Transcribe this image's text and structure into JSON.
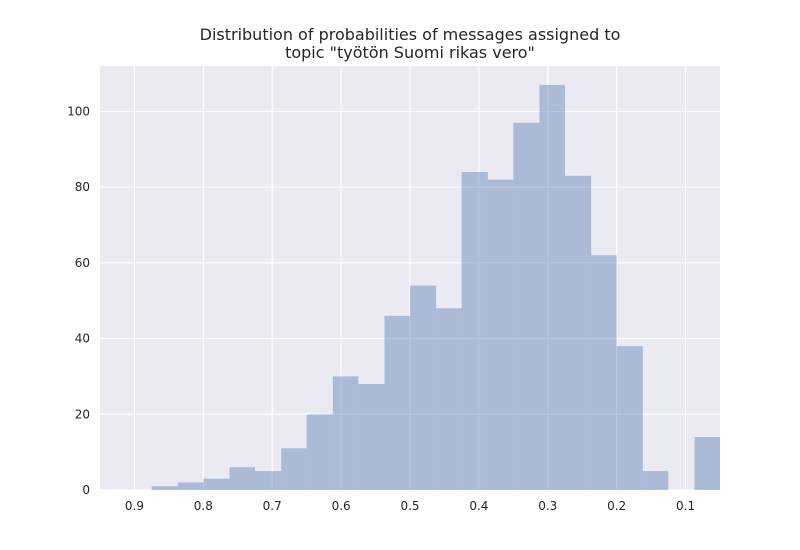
{
  "chart_data": {
    "type": "bar",
    "title": [
      "Distribution of probabilities of messages assigned to",
      "topic \"työtön Suomi rikas vero\""
    ],
    "xlabel": "",
    "ylabel": "",
    "x_axis_reversed": true,
    "xlim": [
      0.95,
      0.05
    ],
    "ylim": [
      0,
      112
    ],
    "x_ticks": [
      0.9,
      0.8,
      0.7,
      0.6,
      0.5,
      0.4,
      0.3,
      0.2,
      0.1
    ],
    "x_tick_labels": [
      "0.9",
      "0.8",
      "0.7",
      "0.6",
      "0.5",
      "0.4",
      "0.3",
      "0.2",
      "0.1"
    ],
    "y_ticks": [
      0,
      20,
      40,
      60,
      80,
      100
    ],
    "y_tick_labels": [
      "0",
      "20",
      "40",
      "60",
      "80",
      "100"
    ],
    "grid": true,
    "bin_edges": [
      0.875,
      0.837,
      0.8,
      0.762,
      0.725,
      0.687,
      0.65,
      0.612,
      0.575,
      0.537,
      0.5,
      0.462,
      0.425,
      0.387,
      0.35,
      0.312,
      0.275,
      0.237,
      0.2,
      0.162,
      0.125,
      0.087,
      0.05
    ],
    "counts": [
      1,
      2,
      3,
      6,
      5,
      11,
      20,
      30,
      28,
      46,
      54,
      48,
      84,
      82,
      97,
      107,
      83,
      62,
      38,
      5,
      0,
      14
    ],
    "bar_color": "#4c72b0",
    "bar_opacity": 0.4,
    "background_color": "#eaeaf2",
    "grid_color": "#ffffff"
  }
}
